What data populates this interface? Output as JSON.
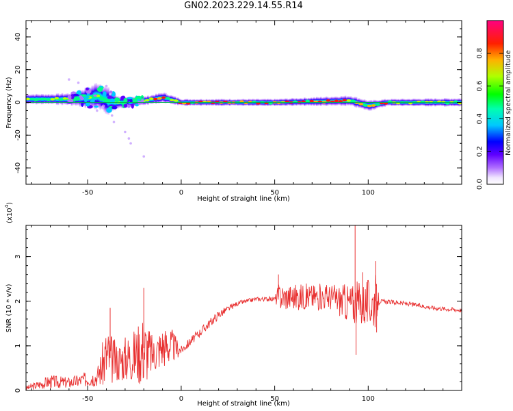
{
  "title": "GN02.2023.229.14.55.R14",
  "chart_data": [
    {
      "type": "heatmap",
      "xlabel": "Height of straight line (km)",
      "ylabel": "Frequency (Hz)",
      "xlim": [
        -83,
        150
      ],
      "ylim": [
        -50,
        50
      ],
      "xticks": [
        -50,
        0,
        50,
        100
      ],
      "yticks": [
        -40,
        -20,
        0,
        20,
        40
      ],
      "colorbar": {
        "label": "Normalized spectral amplitude",
        "range": [
          0,
          1
        ],
        "ticks": [
          "0.0",
          "0.2",
          "0.4",
          "0.6",
          "0.8"
        ]
      },
      "ridge": [
        {
          "x": -83,
          "center": 2,
          "halfwidth": 3
        },
        {
          "x": -70,
          "center": 2,
          "halfwidth": 3
        },
        {
          "x": -60,
          "center": 2,
          "halfwidth": 3.5
        },
        {
          "x": -50,
          "center": 3,
          "halfwidth": 6
        },
        {
          "x": -45,
          "center": 4,
          "halfwidth": 8
        },
        {
          "x": -40,
          "center": 1,
          "halfwidth": 8
        },
        {
          "x": -35,
          "center": 0,
          "halfwidth": 4
        },
        {
          "x": -30,
          "center": 0,
          "halfwidth": 3
        },
        {
          "x": -20,
          "center": 1,
          "halfwidth": 2.5
        },
        {
          "x": -10,
          "center": 3,
          "halfwidth": 3
        },
        {
          "x": 0,
          "center": 0,
          "halfwidth": 2
        },
        {
          "x": 50,
          "center": 0,
          "halfwidth": 2
        },
        {
          "x": 90,
          "center": 1,
          "halfwidth": 3
        },
        {
          "x": 100,
          "center": -2,
          "halfwidth": 3
        },
        {
          "x": 110,
          "center": 0,
          "halfwidth": 2
        },
        {
          "x": 150,
          "center": 0,
          "halfwidth": 2.5
        }
      ],
      "scatter": [
        {
          "x": -40,
          "y": 10
        },
        {
          "x": -38,
          "y": 5
        },
        {
          "x": -37,
          "y": -8
        },
        {
          "x": -36,
          "y": -12
        },
        {
          "x": -30,
          "y": -18
        },
        {
          "x": -28,
          "y": -22
        },
        {
          "x": -27,
          "y": -25
        },
        {
          "x": -20,
          "y": -33
        },
        {
          "x": -55,
          "y": 12
        },
        {
          "x": -60,
          "y": 14
        },
        {
          "x": -45,
          "y": -5
        },
        {
          "x": -42,
          "y": -3
        }
      ]
    },
    {
      "type": "line",
      "xlabel": "Height of straight line (km)",
      "ylabel": "SNR (10 * v/v)",
      "scale_label": "(x10",
      "scale_exp": "4",
      "scale_close": ")",
      "xlim": [
        -83,
        150
      ],
      "ylim": [
        0,
        3.7
      ],
      "xticks": [
        -50,
        0,
        50,
        100
      ],
      "yticks": [
        0,
        1,
        2,
        3
      ],
      "color": "#e83030",
      "envelope": [
        {
          "x": -83,
          "lo": 0.0,
          "hi": 0.1
        },
        {
          "x": -70,
          "lo": 0.05,
          "hi": 0.35
        },
        {
          "x": -60,
          "lo": 0.05,
          "hi": 0.3
        },
        {
          "x": -45,
          "lo": 0.1,
          "hi": 0.5
        },
        {
          "x": -40,
          "lo": 0.05,
          "hi": 1.5
        },
        {
          "x": -35,
          "lo": 0.2,
          "hi": 1.1
        },
        {
          "x": -25,
          "lo": 0.2,
          "hi": 1.4
        },
        {
          "x": -20,
          "lo": 0.1,
          "hi": 1.8
        },
        {
          "x": -15,
          "lo": 0.4,
          "hi": 1.2
        },
        {
          "x": -10,
          "lo": 0.5,
          "hi": 1.5
        },
        {
          "x": -5,
          "lo": 0.6,
          "hi": 1.4
        },
        {
          "x": 0,
          "lo": 0.8,
          "hi": 1.0
        },
        {
          "x": 10,
          "lo": 1.2,
          "hi": 1.4
        },
        {
          "x": 20,
          "lo": 1.6,
          "hi": 1.8
        },
        {
          "x": 30,
          "lo": 1.9,
          "hi": 2.0
        },
        {
          "x": 40,
          "lo": 2.0,
          "hi": 2.1
        },
        {
          "x": 50,
          "lo": 2.0,
          "hi": 2.1
        },
        {
          "x": 52,
          "lo": 1.8,
          "hi": 2.4
        },
        {
          "x": 60,
          "lo": 1.8,
          "hi": 2.4
        },
        {
          "x": 70,
          "lo": 1.8,
          "hi": 2.4
        },
        {
          "x": 80,
          "lo": 1.8,
          "hi": 2.4
        },
        {
          "x": 90,
          "lo": 1.5,
          "hi": 2.4
        },
        {
          "x": 100,
          "lo": 1.4,
          "hi": 2.5
        },
        {
          "x": 104,
          "lo": 1.4,
          "hi": 2.6
        },
        {
          "x": 106,
          "lo": 1.95,
          "hi": 2.05
        },
        {
          "x": 120,
          "lo": 1.9,
          "hi": 2.0
        },
        {
          "x": 135,
          "lo": 1.8,
          "hi": 1.9
        },
        {
          "x": 150,
          "lo": 1.75,
          "hi": 1.85
        }
      ],
      "spikes": [
        {
          "x": -38,
          "y": 1.85
        },
        {
          "x": -20,
          "y": 2.3
        },
        {
          "x": 52,
          "y": 2.6
        },
        {
          "x": 93,
          "y": 3.7
        },
        {
          "x": 93.5,
          "y": 0.8
        },
        {
          "x": 104,
          "y": 2.9
        },
        {
          "x": 97,
          "y": 2.65
        },
        {
          "x": 104.5,
          "y": 1.3
        }
      ]
    }
  ]
}
